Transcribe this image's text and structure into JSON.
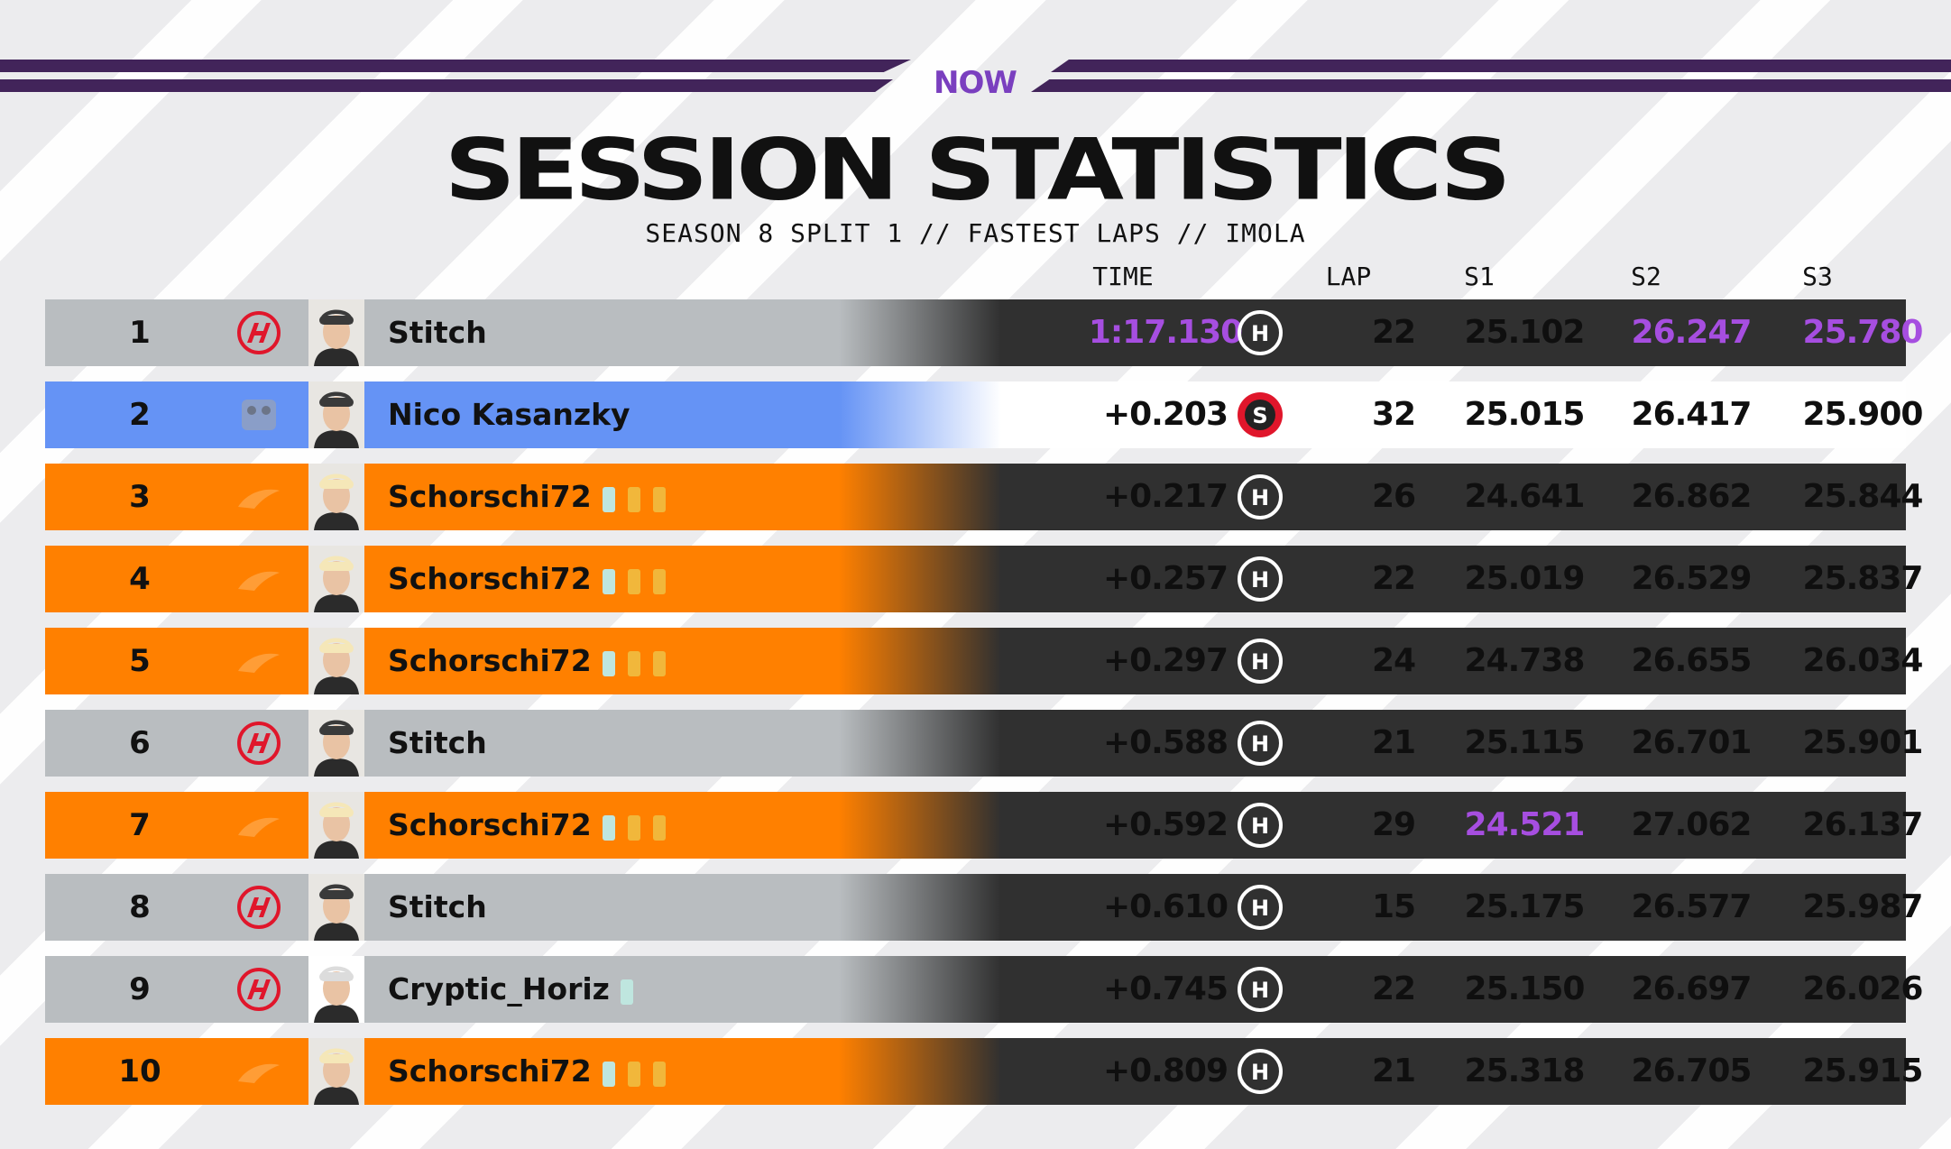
{
  "brand": {
    "logo_text": "NOW",
    "bar_color": "#42245a"
  },
  "header": {
    "title": "SESSION STATISTICS",
    "subtitle": "SEASON 8 SPLIT 1 // FASTEST LAPS // IMOLA"
  },
  "columns": {
    "time": "TIME",
    "lap": "LAP",
    "s1": "S1",
    "s2": "S2",
    "s3": "S3"
  },
  "colors": {
    "haas": "#b9bdc0",
    "mclaren": "#ff8000",
    "mercedes": "#6593f5",
    "dark": "#303030",
    "white": "#ffffff",
    "purple": "#a64ee0",
    "fastest": "#a64ee0"
  },
  "rows": [
    {
      "pos": "1",
      "team": "haas-logo",
      "driver": "Stitch",
      "badges": [],
      "time": "1:17.130",
      "tyre": "H",
      "lap": "22",
      "s1": "25.102",
      "s2": "26.247",
      "s3": "25.780"
    },
    {
      "pos": "2",
      "team": "mercedes-logo",
      "driver": "Nico Kasanzky",
      "badges": [],
      "time": "+0.203",
      "tyre": "S",
      "lap": "32",
      "s1": "25.015",
      "s2": "26.417",
      "s3": "25.900"
    },
    {
      "pos": "3",
      "team": "mclaren-logo",
      "driver": "Schorschi72",
      "badges": [
        "teal",
        "gold",
        "gold"
      ],
      "time": "+0.217",
      "tyre": "H",
      "lap": "26",
      "s1": "24.641",
      "s2": "26.862",
      "s3": "25.844"
    },
    {
      "pos": "4",
      "team": "mclaren-logo",
      "driver": "Schorschi72",
      "badges": [
        "teal",
        "gold",
        "gold"
      ],
      "time": "+0.257",
      "tyre": "H",
      "lap": "22",
      "s1": "25.019",
      "s2": "26.529",
      "s3": "25.837"
    },
    {
      "pos": "5",
      "team": "mclaren-logo",
      "driver": "Schorschi72",
      "badges": [
        "teal",
        "gold",
        "gold"
      ],
      "time": "+0.297",
      "tyre": "H",
      "lap": "24",
      "s1": "24.738",
      "s2": "26.655",
      "s3": "26.034"
    },
    {
      "pos": "6",
      "team": "haas-logo",
      "driver": "Stitch",
      "badges": [],
      "time": "+0.588",
      "tyre": "H",
      "lap": "21",
      "s1": "25.115",
      "s2": "26.701",
      "s3": "25.901"
    },
    {
      "pos": "7",
      "team": "mclaren-logo",
      "driver": "Schorschi72",
      "badges": [
        "teal",
        "gold",
        "gold"
      ],
      "time": "+0.592",
      "tyre": "H",
      "lap": "29",
      "s1": "24.521",
      "s2": "27.062",
      "s3": "26.137"
    },
    {
      "pos": "8",
      "team": "haas-logo",
      "driver": "Stitch",
      "badges": [],
      "time": "+0.610",
      "tyre": "H",
      "lap": "15",
      "s1": "25.175",
      "s2": "26.577",
      "s3": "25.987"
    },
    {
      "pos": "9",
      "team": "haas-logo",
      "driver": "Cryptic_Horiz",
      "badges": [
        "teal"
      ],
      "time": "+0.745",
      "tyre": "H",
      "lap": "22",
      "s1": "25.150",
      "s2": "26.697",
      "s3": "26.026"
    },
    {
      "pos": "10",
      "team": "mclaren-logo",
      "driver": "Schorschi72",
      "badges": [
        "teal",
        "gold",
        "gold"
      ],
      "time": "+0.809",
      "tyre": "H",
      "lap": "21",
      "s1": "25.318",
      "s2": "26.705",
      "s3": "25.915"
    }
  ]
}
